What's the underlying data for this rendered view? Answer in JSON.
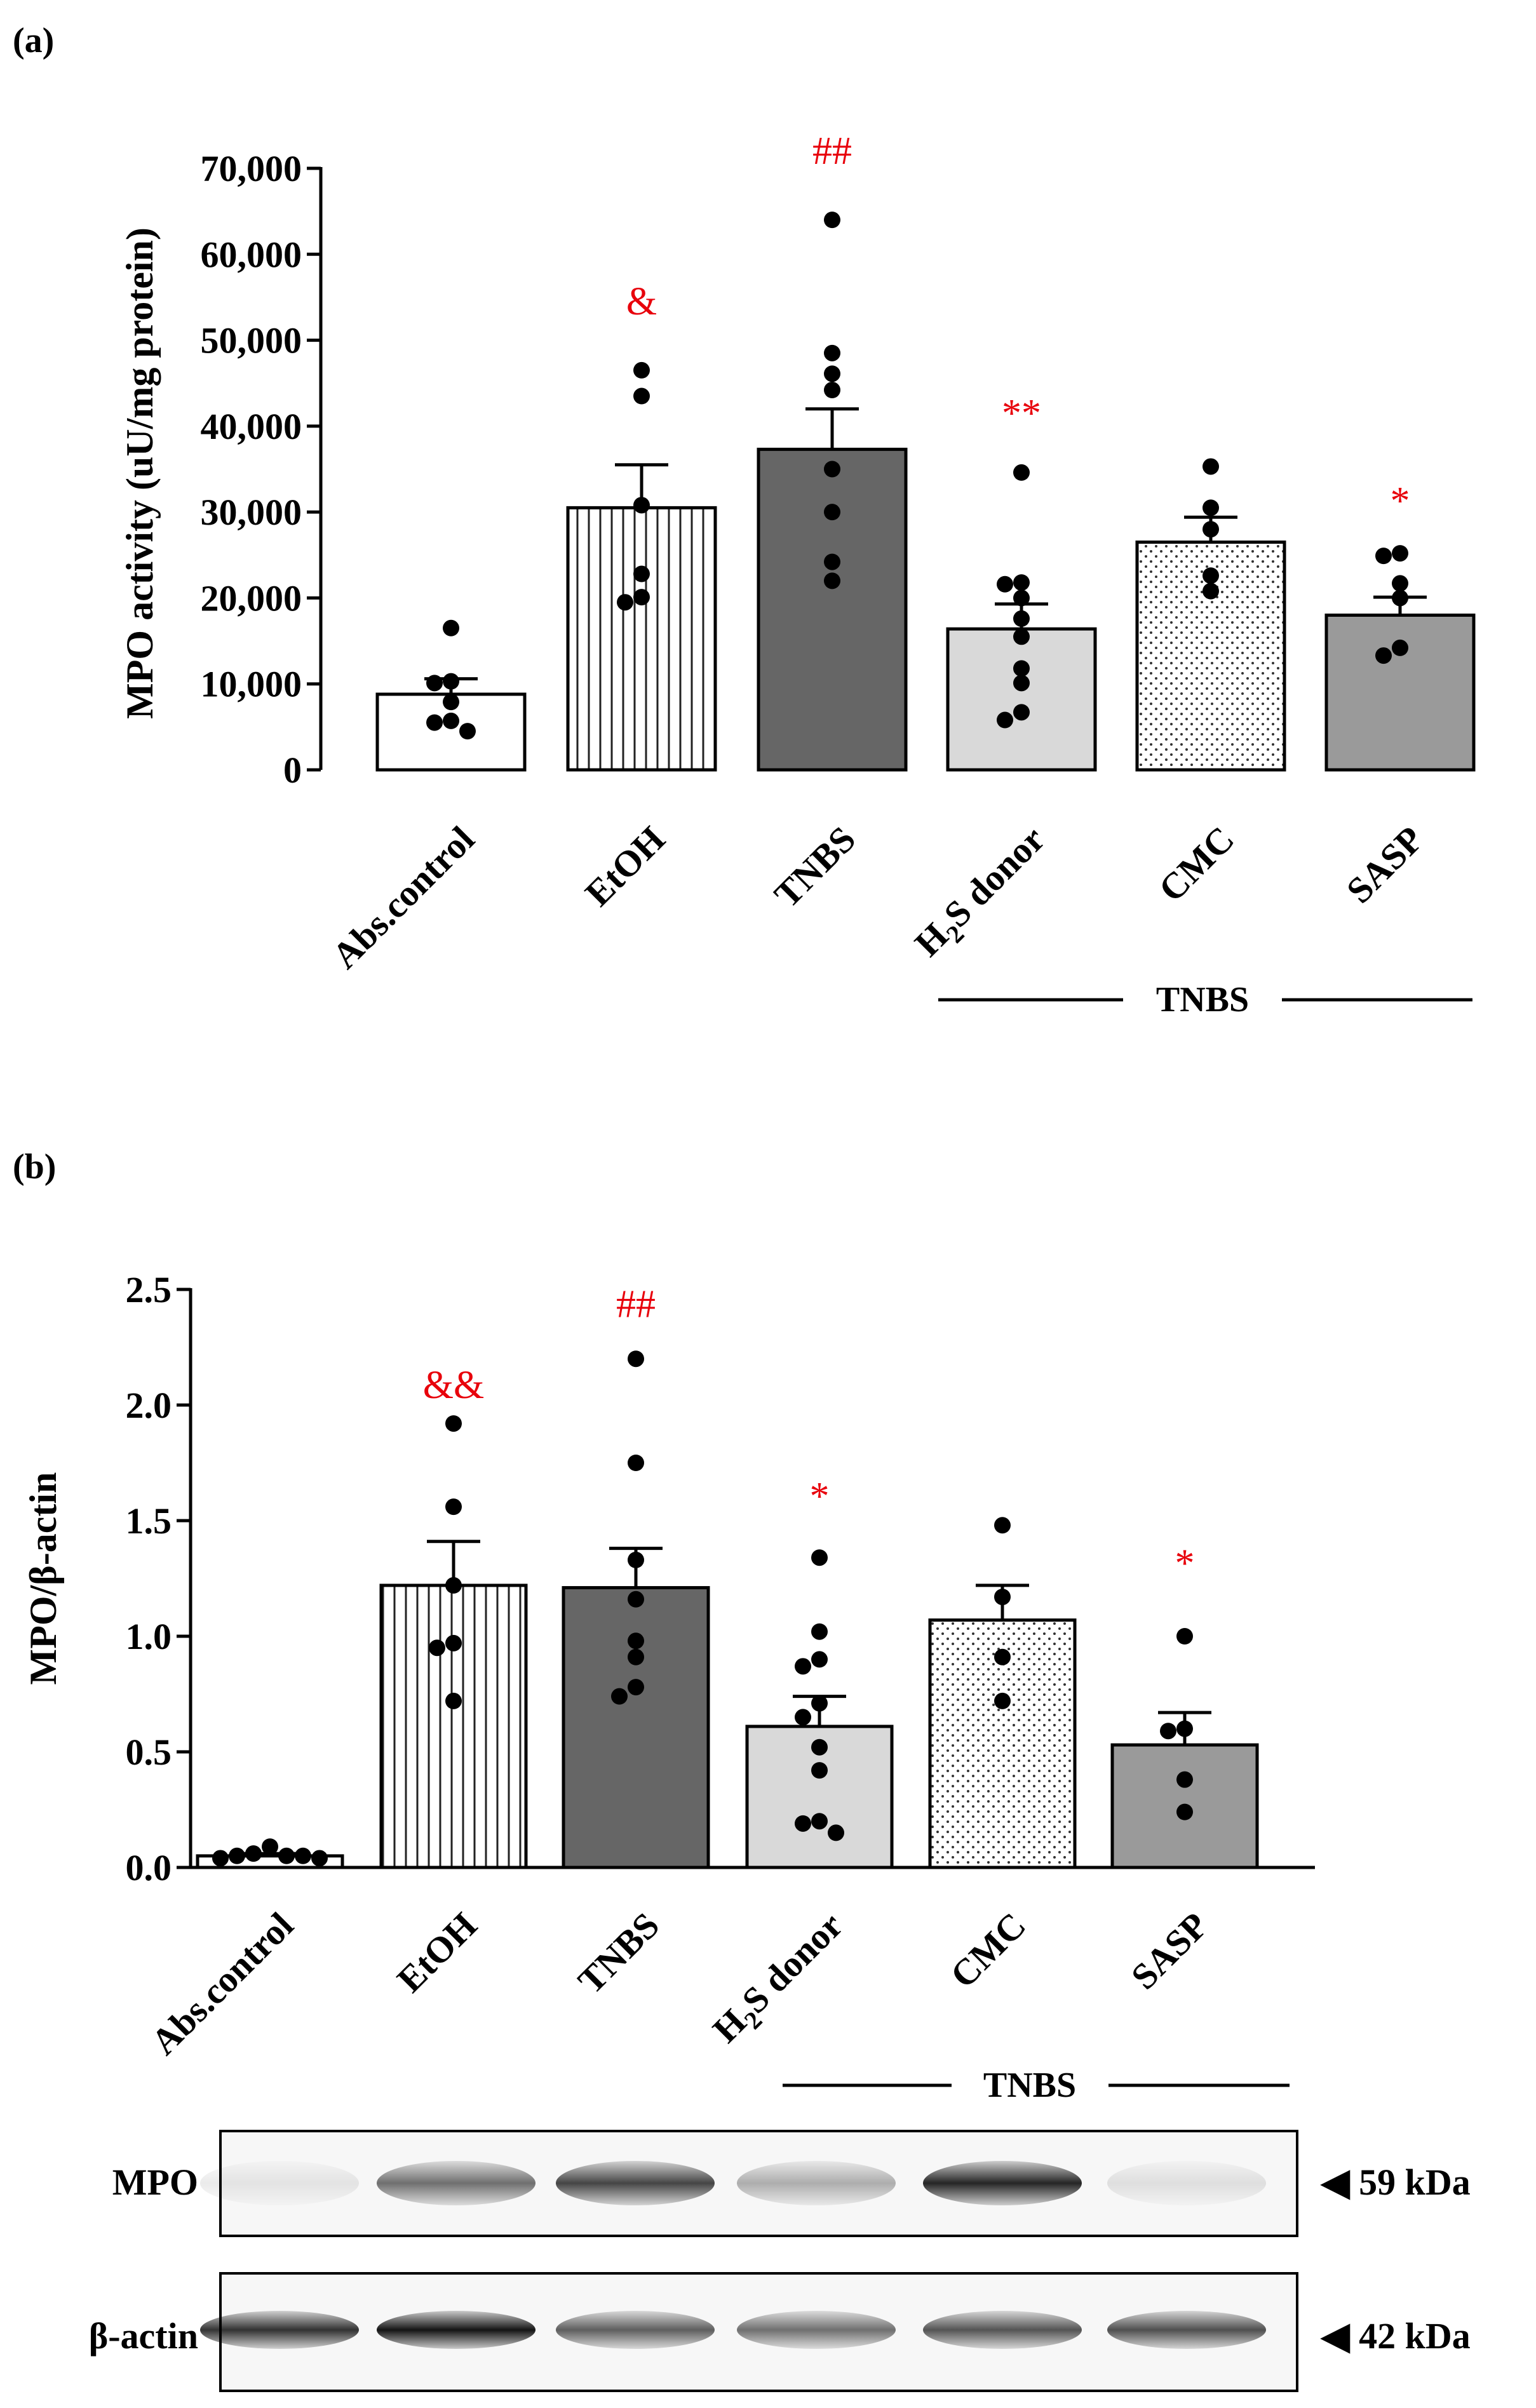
{
  "chart_data": [
    {
      "type": "bar",
      "panel_label": "(a)",
      "ylabel": "MPO activity (uU/mg protein)",
      "ylim": [
        0,
        70000
      ],
      "ytick_values": [
        0,
        10000,
        20000,
        30000,
        40000,
        50000,
        60000,
        70000
      ],
      "ytick_labels": [
        "0",
        "10,000",
        "20,000",
        "30,000",
        "40,000",
        "50,000",
        "60,000",
        "70,000"
      ],
      "categories": [
        "Abs.control",
        "EtOH",
        "TNBS",
        "H2S donor",
        "CMC",
        "SASP"
      ],
      "values": [
        8800,
        30500,
        37300,
        16400,
        26500,
        18000
      ],
      "sem": [
        1800,
        5000,
        4700,
        2900,
        2900,
        2100
      ],
      "points": [
        [
          16500,
          10300,
          10100,
          7900,
          5700,
          5500,
          4500
        ],
        [
          46500,
          43500,
          30800,
          22800,
          20100,
          19500
        ],
        [
          64000,
          48500,
          46100,
          44200,
          35000,
          30000,
          24200,
          22000
        ],
        [
          34600,
          21800,
          21600,
          20000,
          17600,
          15500,
          11800,
          10100,
          6700,
          5800
        ],
        [
          35300,
          30500,
          28000,
          22600,
          20800
        ],
        [
          25200,
          24900,
          21700,
          20000,
          14200,
          13300
        ]
      ],
      "annotations": [
        "",
        "&",
        "##",
        "**",
        "",
        "*"
      ],
      "annotation_values": [
        0,
        53000,
        70500,
        40000,
        0,
        29800
      ],
      "annotation_color": "#e8000b",
      "bar_fills": [
        "white",
        "vertical-stripes",
        "#666666",
        "#d9d9d9",
        "dots",
        "#9a9a9a"
      ],
      "group_label": "TNBS"
    },
    {
      "type": "bar",
      "panel_label": "(b)",
      "ylabel": "MPO/β-actin",
      "ylim": [
        0,
        2.5
      ],
      "ytick_values": [
        0,
        0.5,
        1.0,
        1.5,
        2.0,
        2.5
      ],
      "ytick_labels": [
        "0.0",
        "0.5",
        "1.0",
        "1.5",
        "2.0",
        "2.5"
      ],
      "categories": [
        "Abs.control",
        "EtOH",
        "TNBS",
        "H2S donor",
        "CMC",
        "SASP"
      ],
      "values": [
        0.05,
        1.22,
        1.21,
        0.61,
        1.07,
        0.53
      ],
      "sem": [
        0.01,
        0.19,
        0.17,
        0.13,
        0.15,
        0.14
      ],
      "points": [
        [
          0.09,
          0.06,
          0.05,
          0.05,
          0.05,
          0.04,
          0.04
        ],
        [
          1.92,
          1.56,
          1.22,
          0.97,
          0.95,
          0.72
        ],
        [
          2.2,
          1.75,
          1.33,
          1.16,
          0.98,
          0.91,
          0.78,
          0.74
        ],
        [
          1.34,
          1.02,
          0.9,
          0.87,
          0.71,
          0.65,
          0.52,
          0.42,
          0.19,
          0.2,
          0.15
        ],
        [
          1.48,
          1.17,
          0.91,
          0.72
        ],
        [
          1.0,
          0.6,
          0.59,
          0.38,
          0.24
        ]
      ],
      "annotations": [
        "",
        "&&",
        "##",
        "*",
        "",
        "*"
      ],
      "annotation_values": [
        0,
        2.03,
        2.38,
        1.55,
        0,
        1.26
      ],
      "annotation_color": "#e8000b",
      "bar_fills": [
        "white",
        "vertical-stripes",
        "#666666",
        "#d9d9d9",
        "dots",
        "#9a9a9a"
      ],
      "group_label": "TNBS"
    }
  ],
  "western_blot": {
    "bands": [
      {
        "label": "MPO",
        "marker": "◀ 59 kDa",
        "intensities": [
          0.08,
          0.55,
          0.72,
          0.3,
          0.85,
          0.1
        ]
      },
      {
        "label": "β-actin",
        "marker": "◀ 42 kDa",
        "intensities": [
          0.8,
          0.92,
          0.62,
          0.55,
          0.66,
          0.68
        ]
      }
    ]
  }
}
